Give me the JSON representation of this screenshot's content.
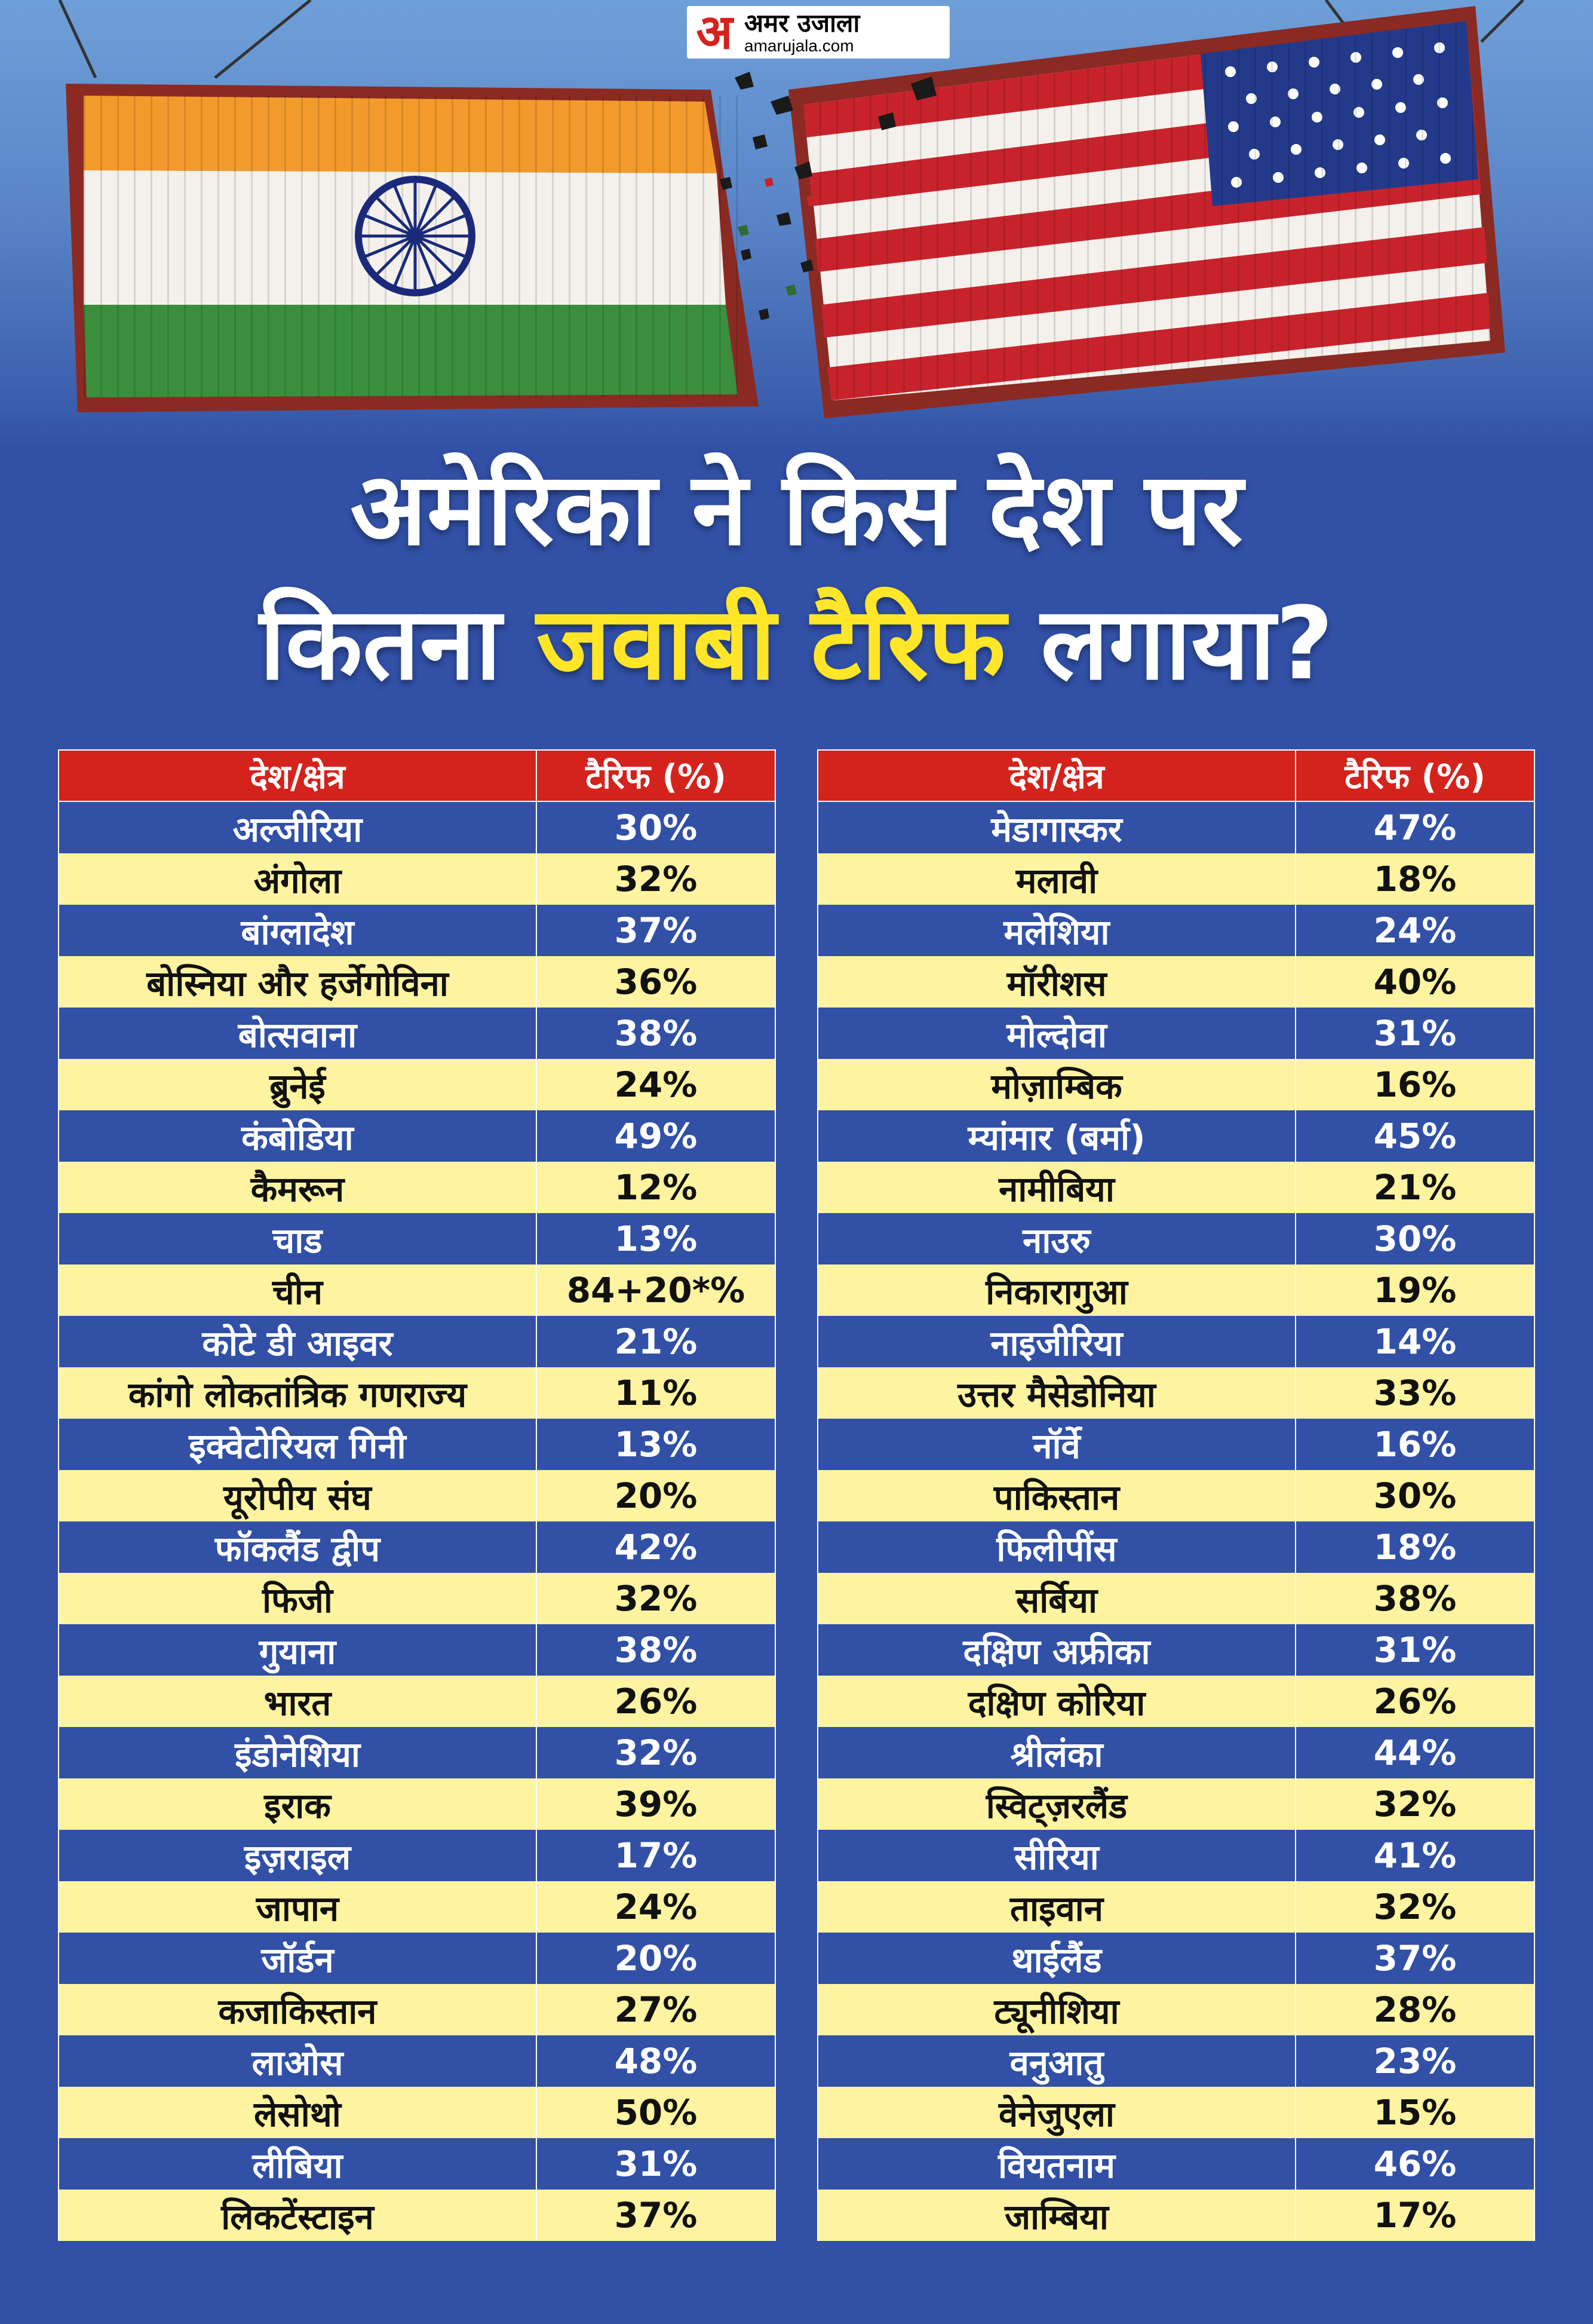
{
  "brand": {
    "logo_mark": "अ",
    "logo_hindi": "अमर उजाला",
    "logo_site": "amarujala.com"
  },
  "title": {
    "line1": "अमेरिका ने किस देश पर",
    "line2_prefix": "कितना ",
    "line2_highlight": "जवाबी टैरिफ",
    "line2_suffix": " लगाया?"
  },
  "colors": {
    "background": "#3150a6",
    "header_red": "#d4231c",
    "highlight_yellow": "#ffe629",
    "row_light": "#fdf3a0"
  },
  "table_headers": {
    "country": "देश/क्षेत्र",
    "tariff": "टैरिफ (%)"
  },
  "left_table": [
    {
      "country": "अल्जीरिया",
      "tariff": "30%"
    },
    {
      "country": "अंगोला",
      "tariff": "32%"
    },
    {
      "country": "बांग्लादेश",
      "tariff": "37%"
    },
    {
      "country": "बोस्निया और हर्जेगोविना",
      "tariff": "36%"
    },
    {
      "country": "बोत्सवाना",
      "tariff": "38%"
    },
    {
      "country": "ब्रुनेई",
      "tariff": "24%"
    },
    {
      "country": "कंबोडिया",
      "tariff": "49%"
    },
    {
      "country": "कैमरून",
      "tariff": "12%"
    },
    {
      "country": "चाड",
      "tariff": "13%"
    },
    {
      "country": "चीन",
      "tariff": "84+20*%"
    },
    {
      "country": "कोटे डी आइवर",
      "tariff": "21%"
    },
    {
      "country": "कांगो लोकतांत्रिक गणराज्य",
      "tariff": "11%"
    },
    {
      "country": "इक्वेटोरियल गिनी",
      "tariff": "13%"
    },
    {
      "country": "यूरोपीय संघ",
      "tariff": "20%"
    },
    {
      "country": "फॉकलैंड द्वीप",
      "tariff": "42%"
    },
    {
      "country": "फिजी",
      "tariff": "32%"
    },
    {
      "country": "गुयाना",
      "tariff": "38%"
    },
    {
      "country": "भारत",
      "tariff": "26%"
    },
    {
      "country": "इंडोनेशिया",
      "tariff": "32%"
    },
    {
      "country": "इराक",
      "tariff": "39%"
    },
    {
      "country": "इज़राइल",
      "tariff": "17%"
    },
    {
      "country": "जापान",
      "tariff": "24%"
    },
    {
      "country": "जॉर्डन",
      "tariff": "20%"
    },
    {
      "country": "कजाकिस्तान",
      "tariff": "27%"
    },
    {
      "country": "लाओस",
      "tariff": "48%"
    },
    {
      "country": "लेसोथो",
      "tariff": "50%"
    },
    {
      "country": "लीबिया",
      "tariff": "31%"
    },
    {
      "country": "लिकटेंस्टाइन",
      "tariff": "37%"
    }
  ],
  "right_table": [
    {
      "country": "मेडागास्कर",
      "tariff": "47%"
    },
    {
      "country": "मलावी",
      "tariff": "18%"
    },
    {
      "country": "मलेशिया",
      "tariff": "24%"
    },
    {
      "country": "मॉरीशस",
      "tariff": "40%"
    },
    {
      "country": "मोल्दोवा",
      "tariff": "31%"
    },
    {
      "country": "मोज़ाम्बिक",
      "tariff": "16%"
    },
    {
      "country": "म्यांमार (बर्मा)",
      "tariff": "45%"
    },
    {
      "country": "नामीबिया",
      "tariff": "21%"
    },
    {
      "country": "नाउरु",
      "tariff": "30%"
    },
    {
      "country": "निकारागुआ",
      "tariff": "19%"
    },
    {
      "country": "नाइजीरिया",
      "tariff": "14%"
    },
    {
      "country": "उत्तर मैसेडोनिया",
      "tariff": "33%"
    },
    {
      "country": "नॉर्वे",
      "tariff": "16%"
    },
    {
      "country": "पाकिस्तान",
      "tariff": "30%"
    },
    {
      "country": "फिलीपींस",
      "tariff": "18%"
    },
    {
      "country": "सर्बिया",
      "tariff": "38%"
    },
    {
      "country": "दक्षिण अफ्रीका",
      "tariff": "31%"
    },
    {
      "country": "दक्षिण कोरिया",
      "tariff": "26%"
    },
    {
      "country": "श्रीलंका",
      "tariff": "44%"
    },
    {
      "country": "स्विट्ज़रलैंड",
      "tariff": "32%"
    },
    {
      "country": "सीरिया",
      "tariff": "41%"
    },
    {
      "country": "ताइवान",
      "tariff": "32%"
    },
    {
      "country": "थाईलैंड",
      "tariff": "37%"
    },
    {
      "country": "ट्यूनीशिया",
      "tariff": "28%"
    },
    {
      "country": "वनुआतु",
      "tariff": "23%"
    },
    {
      "country": "वेनेजुएला",
      "tariff": "15%"
    },
    {
      "country": "वियतनाम",
      "tariff": "46%"
    },
    {
      "country": "जाम्बिया",
      "tariff": "17%"
    }
  ]
}
